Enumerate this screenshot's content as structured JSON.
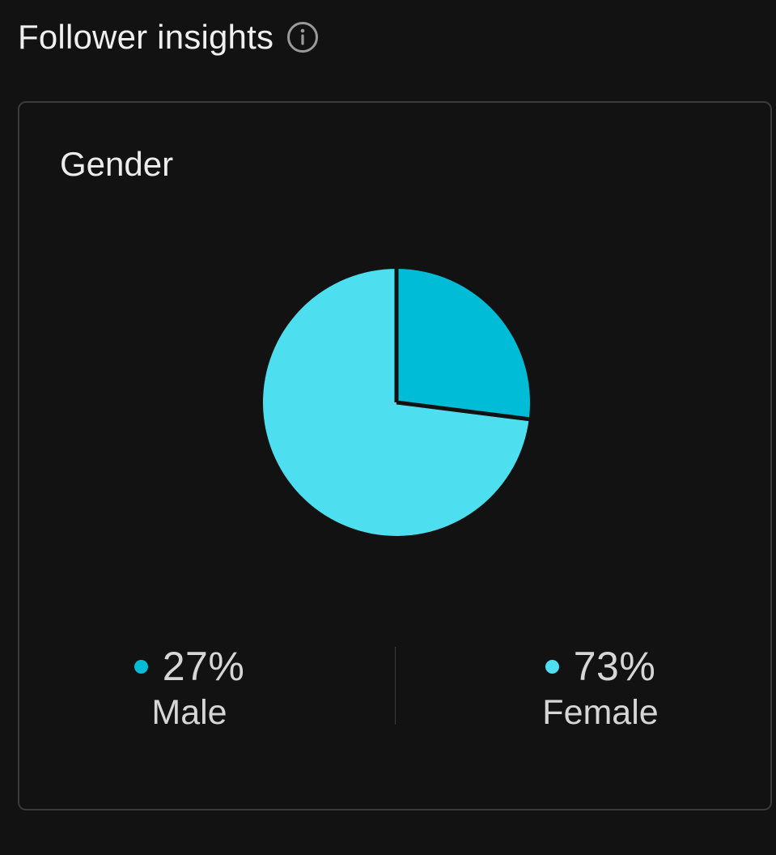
{
  "header": {
    "title": "Follower insights",
    "info_icon": "info-icon"
  },
  "card": {
    "title": "Gender"
  },
  "chart_data": {
    "type": "pie",
    "title": "Gender",
    "categories": [
      "Male",
      "Female"
    ],
    "values": [
      27,
      73
    ],
    "value_labels": [
      "27%",
      "73%"
    ],
    "colors": [
      "#00BCD6",
      "#4DDFF0"
    ],
    "start_angle_deg": 0,
    "direction": "clockwise",
    "legend_placement": "bottom"
  },
  "colors": {
    "background": "#121212",
    "card_border": "#3a3a3a",
    "text": "#ececec",
    "male": "#00BCD6",
    "female": "#4DDFF0"
  }
}
